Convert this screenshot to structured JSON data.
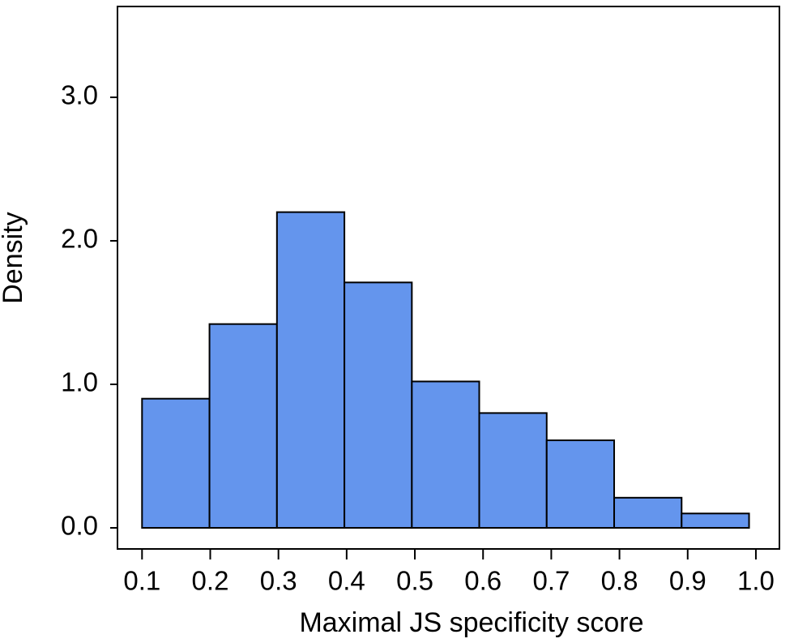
{
  "chart_data": {
    "type": "histogram",
    "x_label": "Maximal JS specificity score",
    "y_label": "Density",
    "bins": [
      0.1,
      0.1989,
      0.2978,
      0.3967,
      0.4956,
      0.5944,
      0.6933,
      0.7922,
      0.8911,
      0.99
    ],
    "values": [
      0.9,
      1.42,
      2.2,
      1.71,
      1.02,
      0.8,
      0.61,
      0.21,
      0.1
    ],
    "color": "#6495ed",
    "xlim": [
      0.064,
      1.0345
    ],
    "ylim": [
      -0.147,
      3.633
    ],
    "xticks": [
      0.1,
      0.2,
      0.3,
      0.4,
      0.5,
      0.6,
      0.7,
      0.8,
      0.9,
      {
        "value": 1.0,
        "label": "1.0"
      }
    ],
    "yticks": [
      {
        "value": 0,
        "label": "0.0"
      },
      {
        "value": 1,
        "label": "1.0"
      },
      {
        "value": 2,
        "label": "2.0"
      },
      {
        "value": 3,
        "label": "3.0"
      }
    ]
  }
}
